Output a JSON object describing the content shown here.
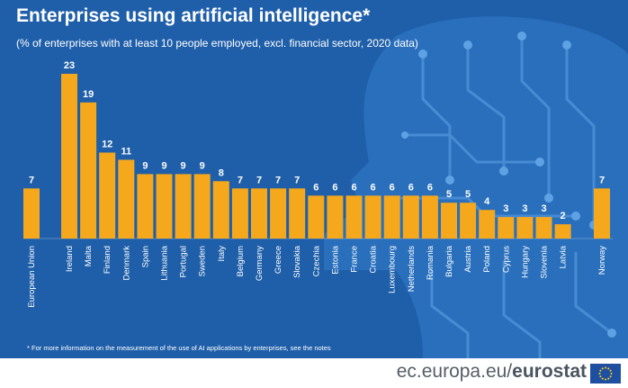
{
  "title": "Enterprises using artificial intelligence*",
  "subtitle": "(% of enterprises with at least 10 people employed, excl. financial sector, 2020 data)",
  "footnote": "* For more information on the measurement of the use of AI applications by enterprises, see the notes",
  "footer": {
    "domain": "ec.europa.eu/",
    "brand": "eurostat",
    "flag_icon": "eu-flag-icon"
  },
  "colors": {
    "background": "#1f5fa9",
    "bar": "#f5a81c",
    "text": "#ffffff"
  },
  "chart_data": {
    "type": "bar",
    "title": "Enterprises using artificial intelligence*",
    "subtitle": "(% of enterprises with at least 10 people employed, excl. financial sector, 2020 data)",
    "categories": [
      "European Union",
      "Ireland",
      "Malta",
      "Finland",
      "Denmark",
      "Spain",
      "Lithuania",
      "Portugal",
      "Sweden",
      "Italy",
      "Belgium",
      "Germany",
      "Greece",
      "Slovakia",
      "Czechia",
      "Estonia",
      "France",
      "Croatia",
      "Luxembourg",
      "Netherlands",
      "Romania",
      "Bulgaria",
      "Austria",
      "Poland",
      "Cyprus",
      "Hungary",
      "Slovenia",
      "Latvia",
      "Norway"
    ],
    "values": [
      7,
      23,
      19,
      12,
      11,
      9,
      9,
      9,
      9,
      8,
      7,
      7,
      7,
      7,
      6,
      6,
      6,
      6,
      6,
      6,
      6,
      5,
      5,
      4,
      3,
      3,
      3,
      2,
      7
    ],
    "ylim": [
      0,
      23
    ],
    "grid": false,
    "legend": "none"
  }
}
